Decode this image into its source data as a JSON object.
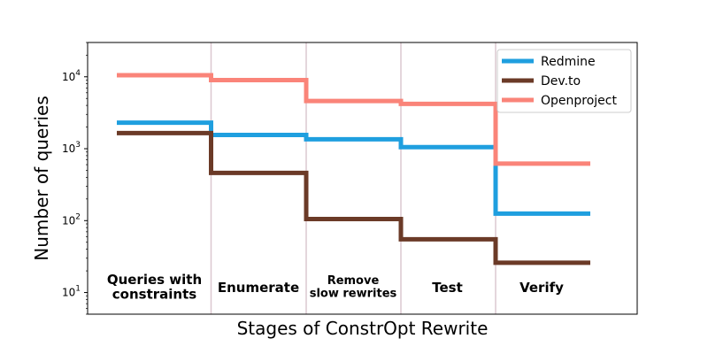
{
  "chart_data": {
    "type": "line",
    "step": true,
    "title": "",
    "xlabel": "Stages of ConstrOpt Rewrite",
    "ylabel": "Number of queries",
    "yscale": "log",
    "ylim": [
      5,
      30000
    ],
    "yticks": [
      {
        "value": 10,
        "base": "10",
        "exp": "1"
      },
      {
        "value": 100,
        "base": "10",
        "exp": "2"
      },
      {
        "value": 1000,
        "base": "10",
        "exp": "3"
      },
      {
        "value": 10000,
        "base": "10",
        "exp": "4"
      }
    ],
    "stages": [
      {
        "lines": [
          "Queries with",
          "constraints"
        ]
      },
      {
        "lines": [
          "Enumerate"
        ]
      },
      {
        "lines": [
          "Remove",
          "slow rewrites"
        ]
      },
      {
        "lines": [
          "Test"
        ]
      },
      {
        "lines": [
          "Verify"
        ]
      }
    ],
    "series": [
      {
        "name": "Redmine",
        "color": "#1f9fdf",
        "values": [
          2300,
          1550,
          1350,
          1050,
          125
        ]
      },
      {
        "name": "Dev.to",
        "color": "#6b3a27",
        "values": [
          1650,
          460,
          105,
          55,
          26
        ]
      },
      {
        "name": "Openproject",
        "color": "#fa8479",
        "values": [
          10500,
          9000,
          4600,
          4200,
          620
        ]
      }
    ],
    "legend": {
      "position": "top-right"
    },
    "grid": false,
    "stage_dividers": true,
    "divider_color": "#dcc8d0"
  }
}
